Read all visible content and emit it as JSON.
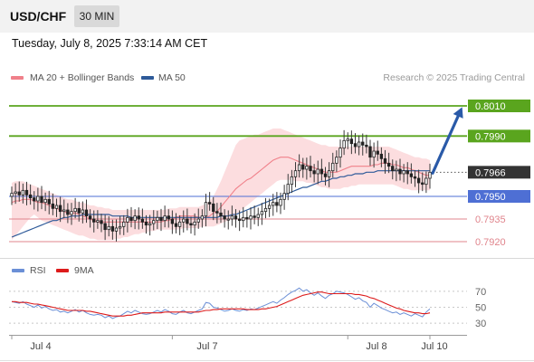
{
  "header": {
    "symbol": "USD/CHF",
    "timeframe": "30 MIN",
    "datetime": "Tuesday, July 8, 2025 7:33:14 AM CET"
  },
  "credit": "Research © 2025 Trading Central",
  "colors": {
    "resistance": "#5aa51e",
    "support": "#4e6fd4",
    "pivot_support": "#e0848c",
    "current": "#333333",
    "ma20": "#f0808a",
    "ma50": "#2e5a99",
    "rsi": "#6b8fd6",
    "rsi_ma": "#dd1b1b",
    "arrow": "#2a5aa8"
  },
  "legend": {
    "ma20": "MA 20 + Bollinger Bands",
    "ma50": "MA 50",
    "rsi": "RSI",
    "rsi_ma": "9MA"
  },
  "chart_data": [
    {
      "type": "candlestick",
      "x_tick_labels": [
        "Jul 4",
        "Jul 7",
        "Jul 8",
        "Jul 10"
      ],
      "ylim": [
        0.7908,
        0.8016
      ],
      "current_price": 0.7966,
      "levels": [
        {
          "label": "0.8010",
          "value": 0.801,
          "kind": "resistance"
        },
        {
          "label": "0.7990",
          "value": 0.799,
          "kind": "resistance"
        },
        {
          "label": "0.7966",
          "value": 0.7966,
          "kind": "current"
        },
        {
          "label": "0.7950",
          "value": 0.795,
          "kind": "support"
        },
        {
          "label": "0.7935",
          "value": 0.7935,
          "kind": "pivot_support"
        },
        {
          "label": "0.7920",
          "value": 0.792,
          "kind": "pivot_support"
        }
      ],
      "close": [
        0.7952,
        0.7953,
        0.7951,
        0.7954,
        0.7951,
        0.7949,
        0.7947,
        0.795,
        0.7946,
        0.7948,
        0.7945,
        0.7942,
        0.7944,
        0.794,
        0.7941,
        0.7938,
        0.794,
        0.7942,
        0.7939,
        0.7941,
        0.7937,
        0.7935,
        0.7933,
        0.7934,
        0.7932,
        0.7928,
        0.793,
        0.7927,
        0.7929,
        0.793,
        0.7933,
        0.7936,
        0.7934,
        0.7937,
        0.7935,
        0.7933,
        0.7931,
        0.7932,
        0.7934,
        0.7936,
        0.7934,
        0.7937,
        0.7935,
        0.7932,
        0.793,
        0.7933,
        0.7935,
        0.7932,
        0.7931,
        0.7933,
        0.7935,
        0.7937,
        0.7946,
        0.7945,
        0.794,
        0.7939,
        0.7937,
        0.7935,
        0.7935,
        0.7937,
        0.7935,
        0.7934,
        0.7936,
        0.7935,
        0.7937,
        0.7936,
        0.7938,
        0.794,
        0.7942,
        0.7944,
        0.7946,
        0.7944,
        0.7948,
        0.7952,
        0.7958,
        0.7963,
        0.7967,
        0.7971,
        0.7968,
        0.797,
        0.7967,
        0.7965,
        0.7968,
        0.7965,
        0.7963,
        0.7967,
        0.7972,
        0.7976,
        0.7982,
        0.7987,
        0.7988,
        0.7985,
        0.7983,
        0.7986,
        0.7984,
        0.7983,
        0.7976,
        0.798,
        0.7978,
        0.7975,
        0.7972,
        0.797,
        0.7967,
        0.7968,
        0.7965,
        0.7967,
        0.7965,
        0.7963,
        0.7962,
        0.7959,
        0.7958,
        0.7962,
        0.7966
      ],
      "ma20": [
        0.7946,
        0.7947,
        0.7947,
        0.7948,
        0.7948,
        0.7948,
        0.7947,
        0.7946,
        0.7946,
        0.7945,
        0.7944,
        0.7943,
        0.7942,
        0.7941,
        0.794,
        0.7939,
        0.7939,
        0.7939,
        0.7938,
        0.7937,
        0.7936,
        0.7935,
        0.7934,
        0.7933,
        0.7933,
        0.7933,
        0.7933,
        0.7933,
        0.7933,
        0.7933,
        0.7933,
        0.7933,
        0.7933,
        0.7933,
        0.7933,
        0.7933,
        0.7933,
        0.7933,
        0.7933,
        0.7933,
        0.7933,
        0.7934,
        0.7934,
        0.7935,
        0.7936,
        0.7937,
        0.7937,
        0.7937,
        0.7937,
        0.7937,
        0.7936,
        0.7936,
        0.7936,
        0.7937,
        0.7939,
        0.794,
        0.7943,
        0.7946,
        0.7949,
        0.7952,
        0.7955,
        0.7957,
        0.7959,
        0.7961,
        0.7962,
        0.7964,
        0.7966,
        0.7968,
        0.797,
        0.7972,
        0.7974,
        0.7975,
        0.7976,
        0.7976,
        0.7976,
        0.7975,
        0.7974,
        0.7973,
        0.7972,
        0.7971,
        0.797,
        0.7969,
        0.7968,
        0.7967,
        0.7966,
        0.7966,
        0.7966,
        0.7966,
        0.7967,
        0.7968,
        0.7969,
        0.797,
        0.797,
        0.797,
        0.797,
        0.797,
        0.797,
        0.7971,
        0.7971,
        0.7972,
        0.7972,
        0.7972,
        0.7971,
        0.7971,
        0.797,
        0.7969,
        0.7969,
        0.7968,
        0.7967,
        0.7966,
        0.7965,
        0.7964,
        0.7964
      ],
      "bb_upper": [
        0.7959,
        0.796,
        0.796,
        0.796,
        0.7959,
        0.7958,
        0.7957,
        0.7956,
        0.7955,
        0.7954,
        0.7953,
        0.7952,
        0.7951,
        0.795,
        0.7949,
        0.7948,
        0.7948,
        0.7947,
        0.7946,
        0.7946,
        0.7945,
        0.7944,
        0.7944,
        0.7943,
        0.7943,
        0.7942,
        0.7942,
        0.7941,
        0.7941,
        0.7941,
        0.7941,
        0.7941,
        0.7941,
        0.7941,
        0.7941,
        0.7941,
        0.7941,
        0.7941,
        0.7941,
        0.7941,
        0.7941,
        0.7941,
        0.7942,
        0.7942,
        0.7942,
        0.7943,
        0.7943,
        0.7943,
        0.7943,
        0.7943,
        0.7943,
        0.7944,
        0.7945,
        0.7947,
        0.795,
        0.7955,
        0.796,
        0.7966,
        0.7972,
        0.7978,
        0.7984,
        0.7987,
        0.7988,
        0.7989,
        0.799,
        0.7991,
        0.7991,
        0.7992,
        0.7993,
        0.7994,
        0.7995,
        0.7995,
        0.7995,
        0.7994,
        0.7993,
        0.7992,
        0.7991,
        0.799,
        0.7989,
        0.7988,
        0.7987,
        0.7986,
        0.7985,
        0.7984,
        0.7984,
        0.7983,
        0.7983,
        0.7983,
        0.7983,
        0.7983,
        0.7983,
        0.7983,
        0.7983,
        0.7983,
        0.7983,
        0.7983,
        0.7983,
        0.7983,
        0.7983,
        0.7983,
        0.7983,
        0.7983,
        0.7982,
        0.7981,
        0.798,
        0.7979,
        0.7978,
        0.7977,
        0.7976,
        0.7976,
        0.7975,
        0.7975,
        0.7974
      ],
      "bb_lower": [
        0.7921,
        0.7924,
        0.7927,
        0.793,
        0.7933,
        0.7936,
        0.7938,
        0.7936,
        0.7934,
        0.7933,
        0.7932,
        0.7931,
        0.793,
        0.7929,
        0.7928,
        0.7927,
        0.7926,
        0.7925,
        0.7924,
        0.7924,
        0.7923,
        0.7922,
        0.7922,
        0.7921,
        0.7921,
        0.7921,
        0.7921,
        0.7921,
        0.7922,
        0.7922,
        0.7923,
        0.7923,
        0.7924,
        0.7925,
        0.7925,
        0.7926,
        0.7926,
        0.7927,
        0.7927,
        0.7928,
        0.7928,
        0.7928,
        0.7928,
        0.7928,
        0.7928,
        0.7928,
        0.7929,
        0.7929,
        0.7929,
        0.7929,
        0.7929,
        0.793,
        0.793,
        0.793,
        0.793,
        0.7931,
        0.7932,
        0.7933,
        0.7934,
        0.7936,
        0.7938,
        0.794,
        0.7942,
        0.7944,
        0.7946,
        0.7948,
        0.795,
        0.7952,
        0.7954,
        0.7956,
        0.7958,
        0.796,
        0.7961,
        0.7961,
        0.7961,
        0.7961,
        0.796,
        0.796,
        0.796,
        0.7959,
        0.7959,
        0.7958,
        0.7957,
        0.7956,
        0.7956,
        0.7955,
        0.7955,
        0.7955,
        0.7955,
        0.7956,
        0.7956,
        0.7957,
        0.7957,
        0.7958,
        0.7958,
        0.7958,
        0.7958,
        0.7958,
        0.7958,
        0.7958,
        0.7958,
        0.7958,
        0.7958,
        0.7957,
        0.7956,
        0.7955,
        0.7955,
        0.7954,
        0.7954,
        0.7954,
        0.7954,
        0.7954,
        0.7954
      ],
      "ma50": [
        0.7923,
        0.7924,
        0.7925,
        0.7926,
        0.7927,
        0.7928,
        0.7929,
        0.793,
        0.7931,
        0.7932,
        0.7933,
        0.7934,
        0.7934,
        0.7935,
        0.7936,
        0.7936,
        0.7937,
        0.7937,
        0.7937,
        0.7938,
        0.7938,
        0.7938,
        0.7938,
        0.7938,
        0.7938,
        0.7938,
        0.7938,
        0.7937,
        0.7937,
        0.7937,
        0.7937,
        0.7937,
        0.7936,
        0.7936,
        0.7936,
        0.7936,
        0.7936,
        0.7936,
        0.7936,
        0.7936,
        0.7936,
        0.7936,
        0.7936,
        0.7936,
        0.7936,
        0.7936,
        0.7936,
        0.7936,
        0.7936,
        0.7936,
        0.7936,
        0.7936,
        0.7936,
        0.7936,
        0.7936,
        0.7936,
        0.7937,
        0.7937,
        0.7937,
        0.7938,
        0.7938,
        0.7939,
        0.794,
        0.7941,
        0.7942,
        0.7943,
        0.7944,
        0.7945,
        0.7946,
        0.7947,
        0.7948,
        0.7949,
        0.795,
        0.7951,
        0.7952,
        0.7953,
        0.7954,
        0.7955,
        0.7956,
        0.7956,
        0.7957,
        0.7958,
        0.7959,
        0.796,
        0.796,
        0.7961,
        0.7962,
        0.7962,
        0.7963,
        0.7963,
        0.7964,
        0.7964,
        0.7965,
        0.7965,
        0.7965,
        0.7966,
        0.7966,
        0.7966,
        0.7967,
        0.7967,
        0.7967,
        0.7967,
        0.7967,
        0.7967,
        0.7967,
        0.7967,
        0.7967,
        0.7967,
        0.7967,
        0.7967,
        0.7967,
        0.7967,
        0.7967
      ]
    },
    {
      "type": "line",
      "yticks": [
        70,
        50,
        30
      ],
      "ylim": [
        20,
        80
      ],
      "rsi": [
        57,
        56,
        55,
        57,
        54,
        52,
        50,
        53,
        49,
        51,
        48,
        46,
        47,
        44,
        45,
        43,
        45,
        47,
        44,
        46,
        43,
        41,
        40,
        41,
        40,
        37,
        39,
        36,
        38,
        39,
        42,
        45,
        43,
        46,
        44,
        42,
        41,
        42,
        44,
        46,
        44,
        47,
        45,
        42,
        41,
        44,
        46,
        43,
        42,
        44,
        46,
        48,
        56,
        55,
        50,
        49,
        47,
        45,
        46,
        48,
        46,
        45,
        47,
        46,
        48,
        47,
        49,
        51,
        53,
        55,
        57,
        55,
        59,
        62,
        66,
        69,
        71,
        74,
        70,
        72,
        68,
        65,
        68,
        64,
        61,
        65,
        67,
        70,
        69,
        68,
        66,
        63,
        60,
        62,
        58,
        56,
        50,
        55,
        52,
        49,
        47,
        45,
        43,
        44,
        41,
        43,
        41,
        39,
        42,
        40,
        38,
        44,
        48
      ],
      "rsi_ma": [
        57,
        57,
        56,
        56,
        56,
        55,
        54,
        54,
        53,
        52,
        51,
        50,
        49,
        48,
        47,
        46,
        46,
        46,
        46,
        46,
        45,
        45,
        44,
        43,
        42,
        41,
        40,
        39,
        39,
        39,
        39,
        40,
        40,
        41,
        42,
        43,
        43,
        43,
        43,
        43,
        43,
        44,
        44,
        44,
        44,
        44,
        44,
        44,
        44,
        44,
        44,
        45,
        46,
        46,
        47,
        47,
        48,
        48,
        48,
        48,
        48,
        48,
        48,
        47,
        47,
        47,
        47,
        48,
        48,
        49,
        50,
        51,
        53,
        55,
        57,
        59,
        61,
        63,
        65,
        66,
        67,
        68,
        69,
        69,
        68,
        67,
        67,
        67,
        67,
        67,
        67,
        67,
        66,
        66,
        65,
        64,
        62,
        61,
        59,
        57,
        55,
        53,
        51,
        49,
        48,
        46,
        45,
        44,
        43,
        43,
        42,
        42,
        43
      ]
    }
  ]
}
